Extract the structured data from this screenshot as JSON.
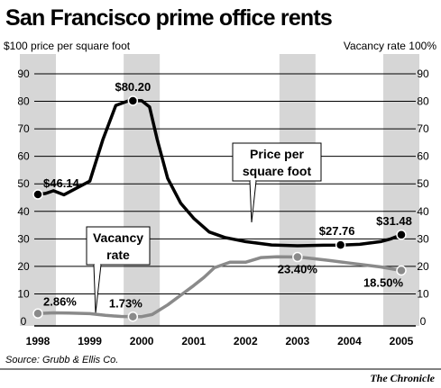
{
  "chart_data": {
    "type": "line",
    "title": "San Francisco prime office rents",
    "left_axis_label": "$100 price per square foot",
    "right_axis_label": "Vacancy rate 100%",
    "x_ticks": [
      "1998",
      "1999",
      "2000",
      "2001",
      "2002",
      "2003",
      "2004",
      "2005"
    ],
    "x_range": [
      1998,
      2005
    ],
    "ylim": [
      0,
      100
    ],
    "y_ticks": [
      0,
      10,
      20,
      30,
      40,
      50,
      60,
      70,
      80,
      90
    ],
    "grid": true,
    "shaded_years": [
      1998,
      2000,
      2003,
      2005
    ],
    "series": [
      {
        "name": "Price per square foot",
        "color": "#000000",
        "x": [
          1998.0,
          1998.15,
          1998.3,
          1998.5,
          1998.75,
          1999.0,
          1999.25,
          1999.5,
          1999.75,
          1999.9,
          2000.0,
          2000.15,
          2000.3,
          2000.5,
          2000.75,
          2001.0,
          2001.3,
          2001.6,
          2002.0,
          2002.5,
          2003.0,
          2003.5,
          2003.83,
          2004.2,
          2004.6,
          2004.8,
          2005.0
        ],
        "values": [
          46.14,
          46.5,
          47.5,
          46,
          48.5,
          51,
          66,
          78.5,
          80.2,
          80.2,
          80.2,
          78,
          66,
          52,
          43,
          37.5,
          32.5,
          30.5,
          29,
          27.8,
          27.5,
          27.7,
          27.76,
          28,
          29,
          30,
          31.48
        ]
      },
      {
        "name": "Vacancy rate",
        "color": "#8a8a8a",
        "x": [
          1998.0,
          1998.3,
          1998.6,
          1999.0,
          1999.3,
          1999.6,
          1999.83,
          2000.0,
          2000.2,
          2000.5,
          2000.75,
          2001.0,
          2001.2,
          2001.4,
          2001.7,
          2002.0,
          2002.3,
          2002.6,
          2003.0,
          2003.3,
          2003.6,
          2004.0,
          2004.3,
          2004.6,
          2005.0
        ],
        "values": [
          2.86,
          3.1,
          3.0,
          2.8,
          2.2,
          1.8,
          1.73,
          1.73,
          2.5,
          6,
          9.5,
          13,
          16,
          19.5,
          21.5,
          21.5,
          23.2,
          23.5,
          23.4,
          22.8,
          22.2,
          21.2,
          20.5,
          19.8,
          18.5
        ]
      }
    ],
    "data_labels": [
      {
        "text": "$46.14",
        "series": 0,
        "x": 1998.0,
        "y": 46.14
      },
      {
        "text": "$80.20",
        "series": 0,
        "x": 1999.83,
        "y": 80.2
      },
      {
        "text": "$27.76",
        "series": 0,
        "x": 2003.83,
        "y": 27.76
      },
      {
        "text": "$31.48",
        "series": 0,
        "x": 2005.0,
        "y": 31.48
      },
      {
        "text": "2.86%",
        "series": 1,
        "x": 1998.0,
        "y": 2.86
      },
      {
        "text": "1.73%",
        "series": 1,
        "x": 1999.83,
        "y": 1.73
      },
      {
        "text": "23.40%",
        "series": 1,
        "x": 2003.0,
        "y": 23.4
      },
      {
        "text": "18.50%",
        "series": 1,
        "x": 2005.0,
        "y": 18.5
      }
    ],
    "callouts": {
      "price": [
        "Price per",
        "square foot"
      ],
      "vacancy": [
        "Vacancy",
        "rate"
      ]
    },
    "source": "Source: Grubb & Ellis Co.",
    "credit": "The Chronicle"
  }
}
